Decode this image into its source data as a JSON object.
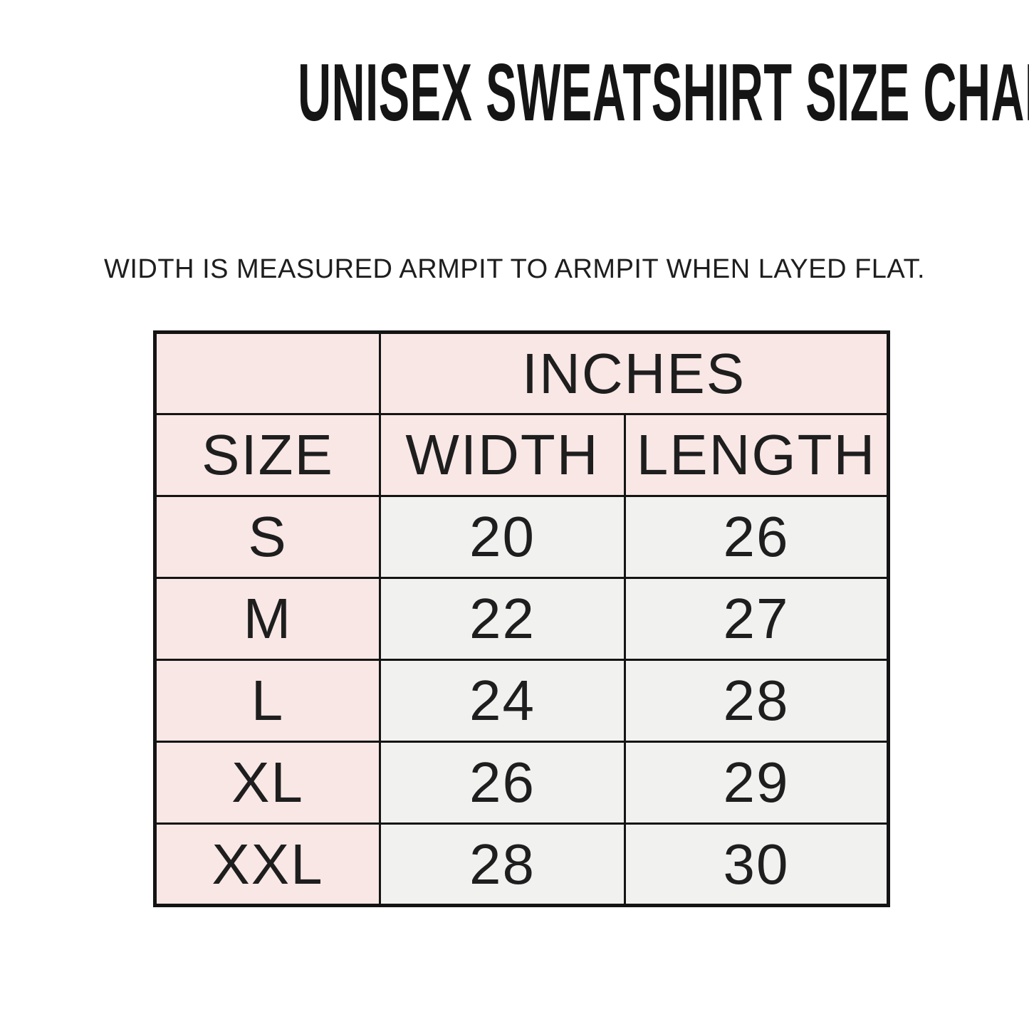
{
  "chart_data": {
    "type": "table",
    "title": "UNISEX SWEATSHIRT SIZE CHART",
    "subtitle": "WIDTH IS MEASURED ARMPIT TO ARMPIT WHEN LAYED FLAT.",
    "unit_group_header": "INCHES",
    "columns": [
      "SIZE",
      "WIDTH",
      "LENGTH"
    ],
    "rows": [
      [
        "S",
        20,
        26
      ],
      [
        "M",
        22,
        27
      ],
      [
        "L",
        24,
        28
      ],
      [
        "XL",
        26,
        29
      ],
      [
        "XXL",
        28,
        30
      ]
    ],
    "layout_hints": {
      "header_rows_background": "pink",
      "size_column_background": "pink",
      "value_cells_background": "gray",
      "grid": "on"
    }
  },
  "colors": {
    "background": "#ffffff",
    "pink": "#f8e7e5",
    "gray": "#f1f1f0",
    "border": "#141414",
    "text": "#1e1e1e",
    "title": "#151515"
  }
}
